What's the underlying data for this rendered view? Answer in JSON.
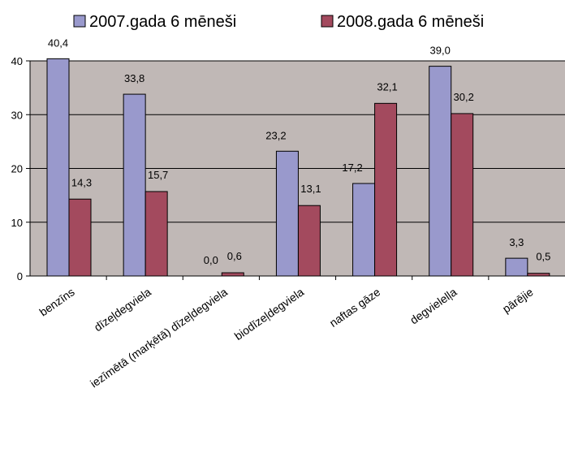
{
  "chart_data": {
    "type": "bar",
    "title": "",
    "xlabel": "",
    "ylabel": "",
    "categories": [
      "benzīns",
      "dīzeļdegviela",
      "iezīmētā (marķētā) dīzeļdegviela",
      "biodīzeļdegviela",
      "naftas gāze",
      "degvielelļa",
      "pārējie"
    ],
    "series": [
      {
        "name": "2007.gada 6 mēneši",
        "color": "#9999cc",
        "values": [
          40.4,
          33.8,
          0.0,
          23.2,
          17.2,
          39.0,
          3.3
        ],
        "labels": [
          "40,4",
          "33,8",
          "0,0",
          "23,2",
          "17,2",
          "39,0",
          "3,3"
        ]
      },
      {
        "name": "2008.gada 6 mēneši",
        "color": "#a34a5e",
        "values": [
          14.3,
          15.7,
          0.6,
          13.1,
          32.1,
          30.2,
          0.5
        ],
        "labels": [
          "14,3",
          "15,7",
          "0,6",
          "13,1",
          "32,1",
          "30,2",
          "0,5"
        ]
      }
    ],
    "ylim": [
      0,
      40
    ],
    "yticks": [
      "0",
      "10",
      "20",
      "30",
      "40"
    ],
    "grid": true,
    "legend_position": "top",
    "plot_background": "#c0b8b6"
  }
}
